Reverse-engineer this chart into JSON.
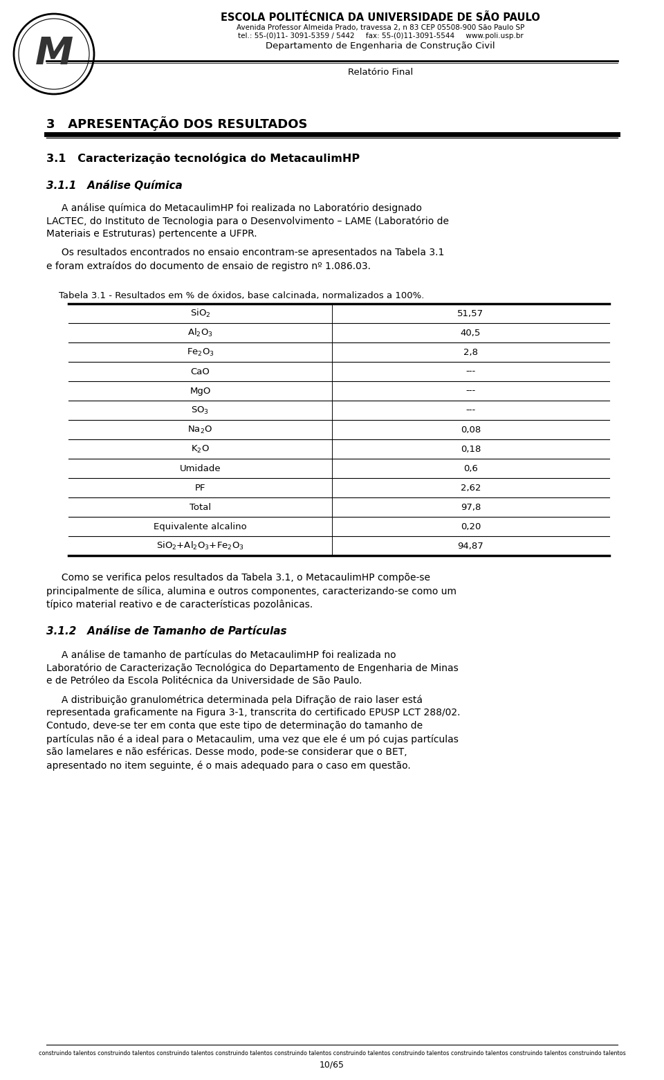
{
  "page_bg": "#ffffff",
  "header_title": "ESCOLA POLITÉCNICA DA UNIVERSIDADE DE SÃO PAULO",
  "header_addr": "Avenida Professor Almeida Prado, travessa 2, n 83 CEP 05508-900 São Paulo SP",
  "header_tel": "tel.: 55-(0)11- 3091-5359 / 5442     fax: 55-(0)11-3091-5544     www.poli.usp.br",
  "header_dept": "Departamento de Engenharia de Construção Civil",
  "header_report": "Relatório Final",
  "section3_title": "3   APRESENTAÇÃO DOS RESULTADOS",
  "section31_title": "3.1   Caracterização tecnológica do MetacaulimHP",
  "section311_title": "3.1.1   Análise Química",
  "table_caption": "Tabela 3.1 - Resultados em % de óxidos, base calcinada, normalizados a 100%.",
  "table_rows": [
    [
      "SiO$_2$",
      "51,57"
    ],
    [
      "Al$_2$O$_3$",
      "40,5"
    ],
    [
      "Fe$_2$O$_3$",
      "2,8"
    ],
    [
      "CaO",
      "---"
    ],
    [
      "MgO",
      "---"
    ],
    [
      "SO$_3$",
      "---"
    ],
    [
      "Na$_2$O",
      "0,08"
    ],
    [
      "K$_2$O",
      "0,18"
    ],
    [
      "Umidade",
      "0,6"
    ],
    [
      "PF",
      "2,62"
    ],
    [
      "Total",
      "97,8"
    ],
    [
      "Equivalente alcalino",
      "0,20"
    ],
    [
      "SiO$_2$+Al$_2$O$_3$+Fe$_2$O$_3$",
      "94,87"
    ]
  ],
  "section312_title": "3.1.2   Análise de Tamanho de Partículas",
  "footer_text": "construindo talentos construindo talentos construindo talentos construindo talentos construindo talentos construindo talentos construindo talentos construindo talentos construindo talentos construindo talentos",
  "page_number": "10/65",
  "text_color": "#000000"
}
